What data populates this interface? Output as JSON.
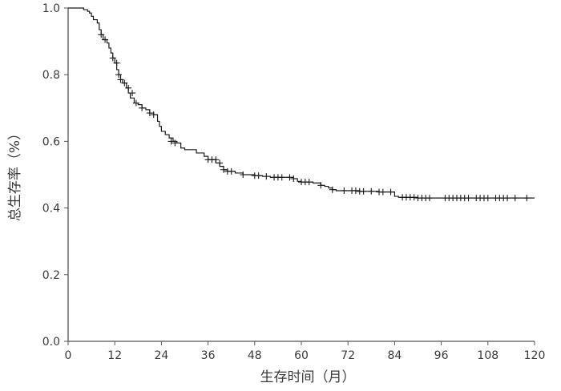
{
  "chart_data": {
    "type": "line",
    "style": "step",
    "title": "",
    "xlabel": "生存时间（月）",
    "ylabel": "总生存率（%）",
    "xlim": [
      0,
      120
    ],
    "ylim": [
      0,
      1.0
    ],
    "x_ticks": [
      "0",
      "12",
      "24",
      "36",
      "48",
      "60",
      "72",
      "84",
      "96",
      "108",
      "120"
    ],
    "y_ticks": [
      "0.0",
      "0.2",
      "0.4",
      "0.6",
      "0.8",
      "1.0"
    ],
    "grid": false,
    "line_color": "#1a1a1a",
    "series": [
      {
        "steps": [
          [
            0,
            1.0
          ],
          [
            4,
            0.995
          ],
          [
            5,
            0.99
          ],
          [
            5.5,
            0.985
          ],
          [
            6,
            0.975
          ],
          [
            6.5,
            0.965
          ],
          [
            7.5,
            0.955
          ],
          [
            8,
            0.935
          ],
          [
            8.5,
            0.92
          ],
          [
            9,
            0.905
          ],
          [
            10,
            0.895
          ],
          [
            10.5,
            0.88
          ],
          [
            11,
            0.865
          ],
          [
            11.5,
            0.85
          ],
          [
            12,
            0.835
          ],
          [
            12.5,
            0.815
          ],
          [
            13,
            0.8
          ],
          [
            13.5,
            0.785
          ],
          [
            14,
            0.775
          ],
          [
            15,
            0.76
          ],
          [
            15.5,
            0.745
          ],
          [
            16,
            0.73
          ],
          [
            17,
            0.715
          ],
          [
            18,
            0.71
          ],
          [
            19,
            0.7
          ],
          [
            20,
            0.695
          ],
          [
            21,
            0.685
          ],
          [
            22,
            0.68
          ],
          [
            23,
            0.66
          ],
          [
            23.5,
            0.645
          ],
          [
            24,
            0.63
          ],
          [
            25,
            0.62
          ],
          [
            26,
            0.61
          ],
          [
            27,
            0.6
          ],
          [
            28,
            0.595
          ],
          [
            29,
            0.58
          ],
          [
            30,
            0.575
          ],
          [
            33,
            0.565
          ],
          [
            35,
            0.555
          ],
          [
            36,
            0.545
          ],
          [
            38,
            0.535
          ],
          [
            39,
            0.525
          ],
          [
            40,
            0.515
          ],
          [
            41,
            0.51
          ],
          [
            43,
            0.505
          ],
          [
            45,
            0.5
          ],
          [
            48,
            0.497
          ],
          [
            50,
            0.495
          ],
          [
            52,
            0.492
          ],
          [
            58,
            0.488
          ],
          [
            59,
            0.48
          ],
          [
            60,
            0.478
          ],
          [
            63,
            0.475
          ],
          [
            65,
            0.468
          ],
          [
            66,
            0.465
          ],
          [
            67,
            0.46
          ],
          [
            68,
            0.455
          ],
          [
            69,
            0.452
          ],
          [
            75,
            0.45
          ],
          [
            80,
            0.448
          ],
          [
            84,
            0.435
          ],
          [
            85,
            0.432
          ],
          [
            90,
            0.43
          ],
          [
            120,
            0.43
          ]
        ],
        "censored": [
          [
            8.5,
            0.92
          ],
          [
            9.5,
            0.905
          ],
          [
            11.5,
            0.85
          ],
          [
            12.5,
            0.835
          ],
          [
            13,
            0.8
          ],
          [
            13.5,
            0.785
          ],
          [
            14.5,
            0.775
          ],
          [
            15.5,
            0.76
          ],
          [
            16.5,
            0.745
          ],
          [
            17.5,
            0.715
          ],
          [
            19,
            0.7
          ],
          [
            21,
            0.685
          ],
          [
            22,
            0.68
          ],
          [
            26.5,
            0.6
          ],
          [
            27.5,
            0.595
          ],
          [
            36,
            0.545
          ],
          [
            37,
            0.545
          ],
          [
            38,
            0.545
          ],
          [
            39,
            0.535
          ],
          [
            40,
            0.515
          ],
          [
            41,
            0.51
          ],
          [
            42,
            0.51
          ],
          [
            45,
            0.5
          ],
          [
            48,
            0.497
          ],
          [
            49,
            0.497
          ],
          [
            51,
            0.495
          ],
          [
            53,
            0.492
          ],
          [
            54,
            0.492
          ],
          [
            55,
            0.492
          ],
          [
            57,
            0.492
          ],
          [
            58,
            0.488
          ],
          [
            60,
            0.478
          ],
          [
            61,
            0.478
          ],
          [
            62,
            0.478
          ],
          [
            65,
            0.468
          ],
          [
            68,
            0.455
          ],
          [
            71,
            0.452
          ],
          [
            73,
            0.452
          ],
          [
            74,
            0.452
          ],
          [
            75,
            0.45
          ],
          [
            76,
            0.45
          ],
          [
            78,
            0.45
          ],
          [
            80,
            0.448
          ],
          [
            81,
            0.448
          ],
          [
            83,
            0.448
          ],
          [
            86,
            0.432
          ],
          [
            87,
            0.432
          ],
          [
            88,
            0.432
          ],
          [
            89,
            0.432
          ],
          [
            90,
            0.43
          ],
          [
            91,
            0.43
          ],
          [
            92,
            0.43
          ],
          [
            93,
            0.43
          ],
          [
            97,
            0.43
          ],
          [
            98,
            0.43
          ],
          [
            99,
            0.43
          ],
          [
            100,
            0.43
          ],
          [
            101,
            0.43
          ],
          [
            102,
            0.43
          ],
          [
            103,
            0.43
          ],
          [
            105,
            0.43
          ],
          [
            106,
            0.43
          ],
          [
            107,
            0.43
          ],
          [
            108,
            0.43
          ],
          [
            110,
            0.43
          ],
          [
            111,
            0.43
          ],
          [
            112,
            0.43
          ],
          [
            113,
            0.43
          ],
          [
            115,
            0.43
          ],
          [
            118,
            0.43
          ]
        ]
      }
    ]
  }
}
